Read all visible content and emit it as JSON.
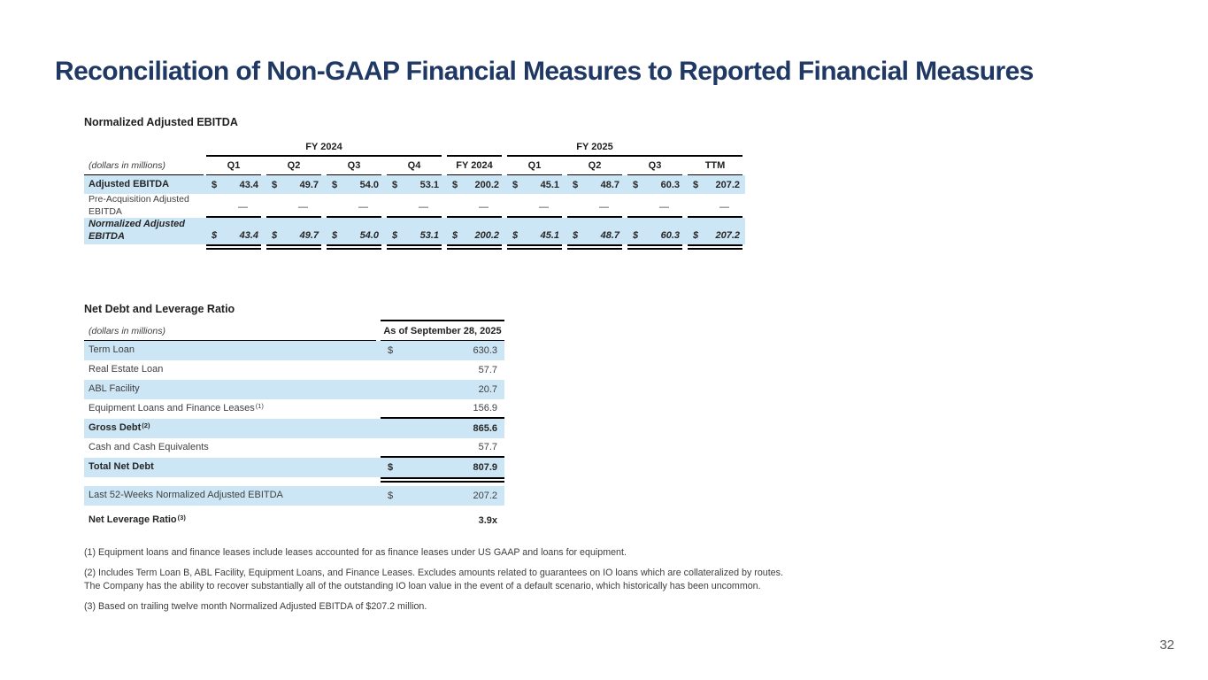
{
  "slide": {
    "title": "Reconciliation of Non-GAAP Financial Measures to Reported Financial Measures",
    "page_number": "32"
  },
  "colors": {
    "title": "#1f3864",
    "highlight_row": "#cde6f5",
    "rule": "#000000",
    "body_text": "#404040",
    "page_number": "#595959"
  },
  "ebitda_section": {
    "heading": "Normalized Adjusted EBITDA",
    "units_label": "(dollars in millions)",
    "group_headers": [
      {
        "label": "FY 2024",
        "col_start": 2,
        "col_end": 6,
        "label_span": 4
      },
      {
        "label": "",
        "col_start": 6,
        "col_end": 7,
        "label_span": 1
      },
      {
        "label": "FY 2025",
        "col_start": 7,
        "col_end": 11,
        "label_span": 3
      }
    ],
    "column_headers": [
      "Q1",
      "Q2",
      "Q3",
      "Q4",
      "FY 2024",
      "Q1",
      "Q2",
      "Q3",
      "TTM"
    ],
    "rows": [
      {
        "label": "Adjusted EBITDA",
        "currency_symbol": "$",
        "values": [
          "43.4",
          "49.7",
          "54.0",
          "53.1",
          "200.2",
          "45.1",
          "48.7",
          "60.3",
          "207.2"
        ],
        "highlight": true,
        "bold": true
      },
      {
        "label": "Pre-Acquisition Adjusted EBITDA",
        "currency_symbol": "",
        "values": [
          "—",
          "—",
          "—",
          "—",
          "—",
          "—",
          "—",
          "—",
          "—"
        ],
        "tall": true,
        "small_label": true,
        "underline_after": true
      },
      {
        "label": "Normalized Adjusted EBITDA",
        "currency_symbol": "$",
        "values": [
          "43.4",
          "49.7",
          "54.0",
          "53.1",
          "200.2",
          "45.1",
          "48.7",
          "60.3",
          "207.2"
        ],
        "highlight": true,
        "bold": true,
        "italic": true,
        "tall": true,
        "double_underline_after": true
      }
    ]
  },
  "debt_section": {
    "heading": "Net Debt and Leverage Ratio",
    "units_label": "(dollars in millions)",
    "column_header": "As of September 28, 2025",
    "rows": [
      {
        "label": "Term Loan",
        "currency_symbol": "$",
        "value": "630.3",
        "highlight": true
      },
      {
        "label": "Real Estate Loan",
        "value": "57.7"
      },
      {
        "label": "ABL Facility",
        "value": "20.7",
        "highlight": true
      },
      {
        "label": "Equipment Loans and Finance Leases",
        "sup": "(1)",
        "value": "156.9",
        "underline_after": true
      },
      {
        "label": "Gross Debt",
        "sup": "(2)",
        "value": "865.6",
        "bold": true,
        "highlight": true
      },
      {
        "label": "Cash and Cash Equivalents",
        "value": "57.7",
        "underline_after": true
      },
      {
        "label": "Total Net Debt",
        "currency_symbol": "$",
        "value": "807.9",
        "bold": true,
        "highlight": true,
        "double_underline_after": true
      },
      {
        "label": "Last 52-Weeks Normalized Adjusted EBITDA",
        "currency_symbol": "$",
        "value": "207.2",
        "highlight": true,
        "gap_before": 4
      },
      {
        "label": "Net Leverage Ratio",
        "sup": "(3)",
        "value": "3.9x",
        "bold": true,
        "gap_before": 6
      }
    ]
  },
  "footnotes": [
    "(1) Equipment loans and finance leases include leases accounted for as finance leases under US GAAP and loans for equipment.",
    "(2) Includes Term Loan B, ABL Facility, Equipment Loans, and Finance Leases. Excludes amounts related to guarantees on IO loans which are collateralized by routes. The Company has the ability to recover substantially all of the outstanding IO loan value in the event of a default scenario, which historically has been uncommon.",
    "(3) Based on trailing twelve month Normalized Adjusted EBITDA of $207.2 million."
  ]
}
